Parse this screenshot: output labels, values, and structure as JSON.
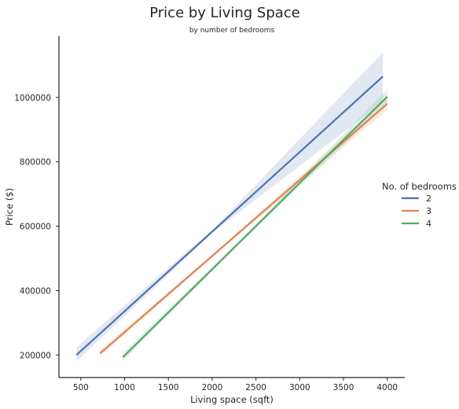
{
  "chart_data": {
    "type": "line",
    "title": "Price by Living Space",
    "subtitle": "by number of bedrooms",
    "xlabel": "Living space (sqft)",
    "ylabel": "Price ($)",
    "xlim": [
      250,
      4200
    ],
    "ylim": [
      130000,
      1190000
    ],
    "x_ticks": [
      500,
      1000,
      1500,
      2000,
      2500,
      3000,
      3500,
      4000
    ],
    "y_ticks": [
      200000,
      400000,
      600000,
      800000,
      1000000
    ],
    "grid": false,
    "legend_title": "No. of bedrooms",
    "legend_position": "right",
    "series": [
      {
        "name": "2",
        "color": "#4c72b0",
        "x": [
          450,
          3950
        ],
        "y": [
          200000,
          1065000
        ],
        "ci_lower": [
          180000,
          985000
        ],
        "ci_upper": [
          225000,
          1140000
        ]
      },
      {
        "name": "3",
        "color": "#dd8452",
        "x": [
          720,
          4000
        ],
        "y": [
          205000,
          980000
        ],
        "ci_lower": [
          195000,
          960000
        ],
        "ci_upper": [
          215000,
          1000000
        ]
      },
      {
        "name": "4",
        "color": "#55a868",
        "x": [
          980,
          4000
        ],
        "y": [
          193000,
          1002000
        ],
        "ci_lower": [
          180000,
          980000
        ],
        "ci_upper": [
          208000,
          1025000
        ]
      }
    ]
  }
}
